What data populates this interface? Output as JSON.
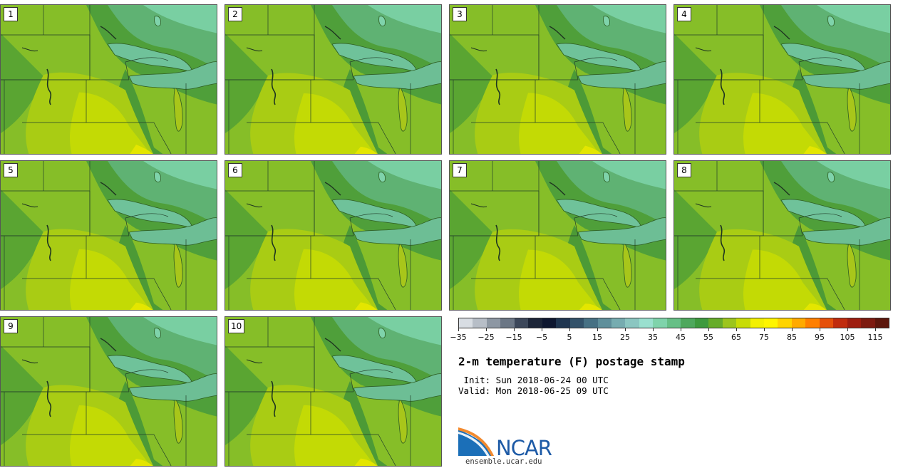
{
  "stamps": [
    {
      "label": "1",
      "warmth": 0.7
    },
    {
      "label": "2",
      "warmth": 0.55
    },
    {
      "label": "3",
      "warmth": 0.62
    },
    {
      "label": "4",
      "warmth": 0.6
    },
    {
      "label": "5",
      "warmth": 0.56
    },
    {
      "label": "6",
      "warmth": 0.58
    },
    {
      "label": "7",
      "warmth": 0.48
    },
    {
      "label": "8",
      "warmth": 0.5
    },
    {
      "label": "9",
      "warmth": 0.55
    },
    {
      "label": "10",
      "warmth": 0.57
    }
  ],
  "colorbar": {
    "unit": "F",
    "min": -35,
    "max": 120,
    "step": 5,
    "tick_labels": [
      "−35",
      "−25",
      "−15",
      "−5",
      "5",
      "15",
      "25",
      "35",
      "45",
      "55",
      "65",
      "75",
      "85",
      "95",
      "105",
      "115"
    ],
    "colors": [
      "#d8dde3",
      "#b7bec7",
      "#8d97a3",
      "#6b7685",
      "#3c475a",
      "#1c2538",
      "#0e1730",
      "#1f3550",
      "#33526a",
      "#477184",
      "#5f8f9b",
      "#76acb0",
      "#8bc6c1",
      "#9ae0cf",
      "#7fd3ab",
      "#66bf86",
      "#4ea85d",
      "#3d9a3e",
      "#66ac2a",
      "#9cc51d",
      "#c8dc07",
      "#f3f002",
      "#fff500",
      "#ffd400",
      "#ffaa00",
      "#ff7f00",
      "#e5500a",
      "#c02b0e",
      "#9e1d10",
      "#7d1a10",
      "#5c160c"
    ]
  },
  "title": "2-m temperature (F) postage stamp",
  "init_line": " Init: Sun 2018-06-24 00 UTC",
  "valid_line": "Valid: Mon 2018-06-25 09 UTC",
  "logo_text": "NCAR",
  "website": "ensemble.ucar.edu"
}
